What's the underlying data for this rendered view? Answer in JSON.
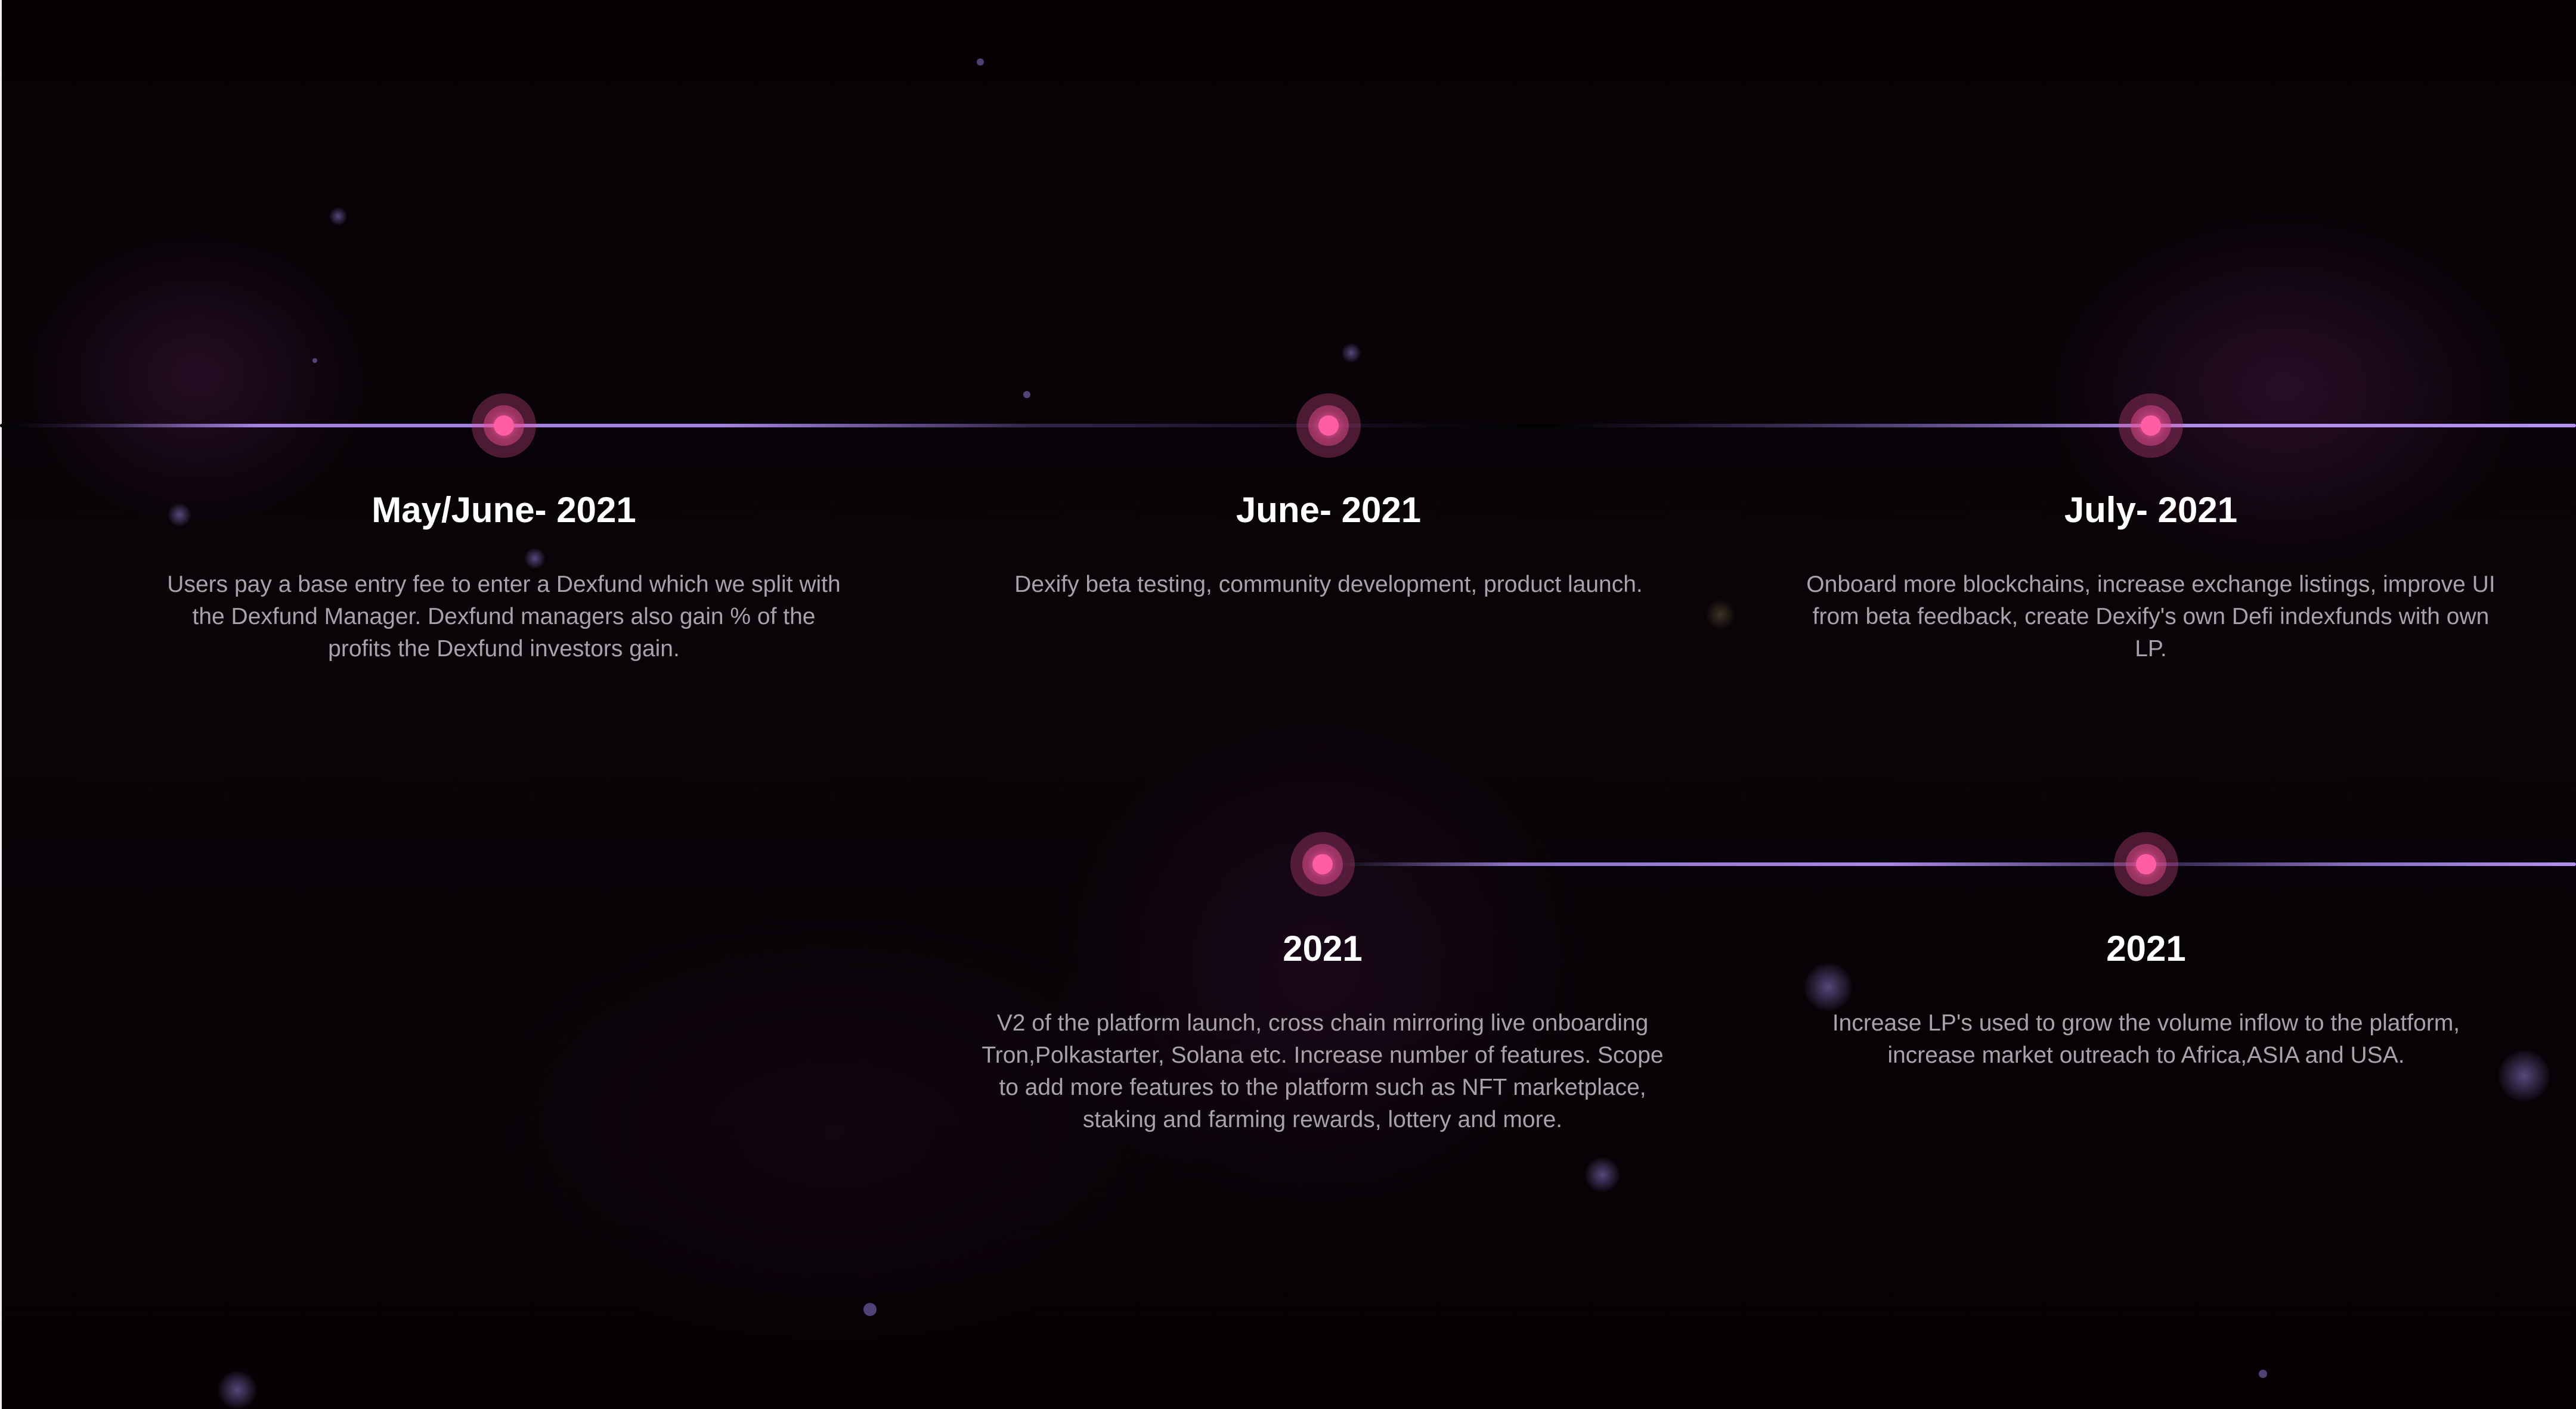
{
  "roadmap": {
    "milestones": [
      {
        "title": "May/June- 2021",
        "description": "Users pay a base entry fee to enter a Dexfund which we split with the Dexfund Manager. Dexfund managers also gain % of the profits the Dexfund investors gain."
      },
      {
        "title": "June- 2021",
        "description": "Dexify beta testing, community development, product launch."
      },
      {
        "title": "July- 2021",
        "description": "Onboard more blockchains, increase exchange listings, improve UI from beta feedback, create Dexify's own Defi indexfunds with own LP."
      },
      {
        "title": "2021",
        "description": "V2 of the platform launch, cross chain mirroring live onboarding Tron,Polkastarter, Solana etc. Increase number of features. Scope to add more features to the platform such as NFT marketplace, staking and farming rewards, lottery and more."
      },
      {
        "title": "2021",
        "description": "Increase LP's used to grow the volume inflow to the platform, increase market outreach to Africa,ASIA and USA."
      }
    ]
  },
  "colors": {
    "background": "#050205",
    "timeline_line": "#a582e1",
    "milestone_dot": "#ff5fa2",
    "title_text": "#ffffff",
    "description_text": "#a7a3a8"
  }
}
